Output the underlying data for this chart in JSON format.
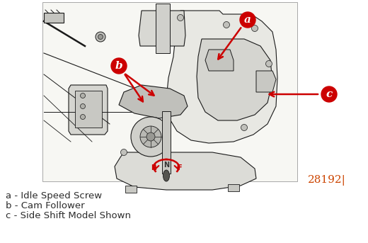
{
  "bg_color": "#ffffff",
  "label_a": "a - Idle Speed Screw",
  "label_b": "b - Cam Follower",
  "label_c": "c - Side Shift Model Shown",
  "ref_number": "28192|",
  "circle_color": "#cc0000",
  "arrow_color": "#cc0000",
  "text_color": "#2b2b2b",
  "diagram_line_color": "#2a2a2a",
  "label_font_size": 9.5,
  "ref_font_size": 11,
  "circle_label_font_size": 11,
  "fig_width": 5.2,
  "fig_height": 3.43,
  "dpi": 100,
  "diagram_bg": "#f5f5f0",
  "line_color": "#1a1a1a"
}
